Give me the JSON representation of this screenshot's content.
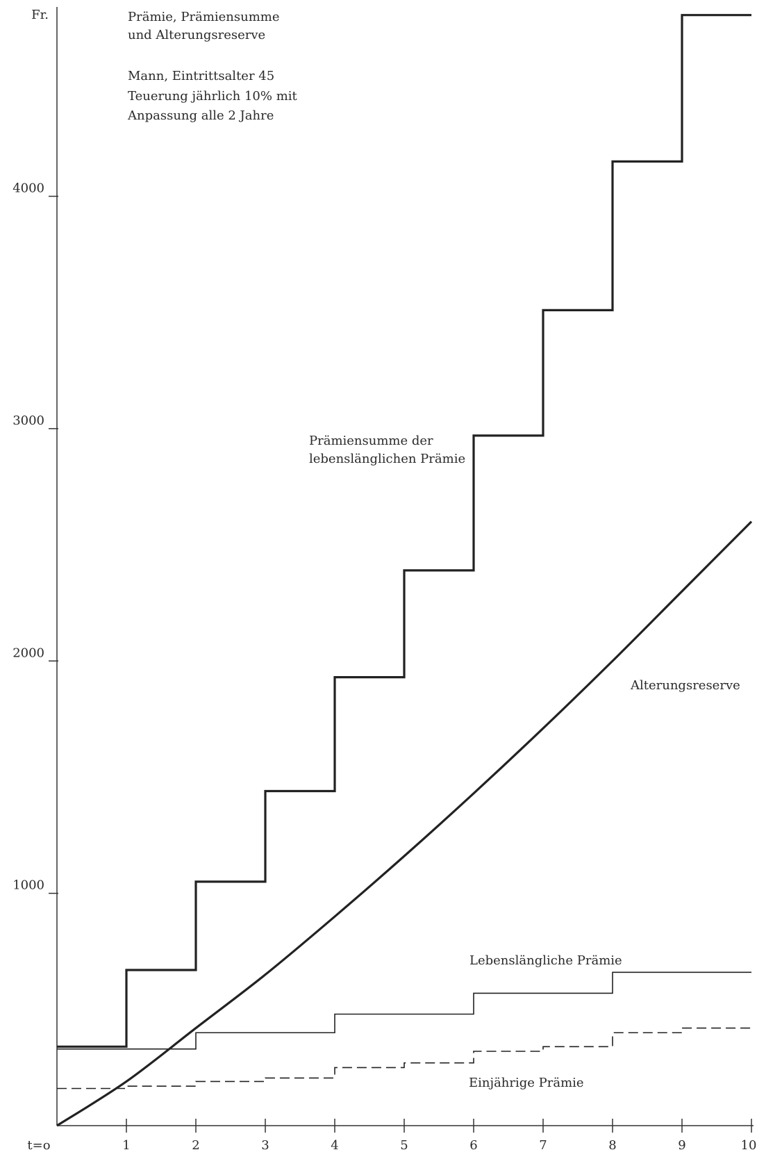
{
  "chart_data": {
    "type": "line",
    "title_lines": [
      "Prämie, Prämiensumme",
      "und Alterungsreserve"
    ],
    "subtitle_lines": [
      "Mann, Eintrittsalter 45",
      "Teuerung jährlich 10% mit",
      "Anpassung alle 2 Jahre"
    ],
    "ylabel": "Fr.",
    "xlim": [
      0,
      10
    ],
    "ylim": [
      0,
      4800
    ],
    "x_ticks": [
      {
        "value": 0,
        "label": "t=o"
      },
      {
        "value": 1,
        "label": "1"
      },
      {
        "value": 2,
        "label": "2"
      },
      {
        "value": 3,
        "label": "3"
      },
      {
        "value": 4,
        "label": "4"
      },
      {
        "value": 5,
        "label": "5"
      },
      {
        "value": 6,
        "label": "6"
      },
      {
        "value": 7,
        "label": "7"
      },
      {
        "value": 8,
        "label": "8"
      },
      {
        "value": 9,
        "label": "9"
      },
      {
        "value": 10,
        "label": "10"
      }
    ],
    "y_ticks": [
      {
        "value": 1000,
        "label": "1000"
      },
      {
        "value": 2000,
        "label": "2000"
      },
      {
        "value": 3000,
        "label": "3000"
      },
      {
        "value": 4000,
        "label": "4000"
      }
    ],
    "grid": false,
    "legend": "none",
    "series": [
      {
        "name": "Prämiensumme der lebenslänglichen Prämie",
        "label_lines": [
          "Prämiensumme der",
          "lebenslänglichen Prämie"
        ],
        "style": "step-thick",
        "x": [
          0,
          1,
          2,
          3,
          4,
          5,
          6,
          7,
          8,
          9,
          10
        ],
        "y": [
          340,
          670,
          1050,
          1440,
          1930,
          2390,
          2970,
          3510,
          4150,
          4780,
          4780
        ]
      },
      {
        "name": "Alterungsreserve",
        "label_lines": [
          "Alterungsreserve"
        ],
        "style": "curve-thick",
        "x": [
          0,
          1,
          2,
          3,
          4,
          5,
          6,
          7,
          8,
          9,
          10
        ],
        "y": [
          0,
          190,
          420,
          650,
          900,
          1160,
          1430,
          1710,
          2000,
          2300,
          2600
        ]
      },
      {
        "name": "Lebenslängliche Prämie",
        "label_lines": [
          "Lebenslängliche Prämie"
        ],
        "style": "step-thin",
        "x": [
          0,
          2,
          4,
          6,
          8,
          10
        ],
        "y": [
          330,
          400,
          480,
          570,
          660,
          660
        ]
      },
      {
        "name": "Einjährige Prämie",
        "label_lines": [
          "Einjährige Prämie"
        ],
        "style": "step-dashed",
        "x": [
          0,
          1,
          2,
          3,
          4,
          5,
          6,
          7,
          8,
          9,
          10
        ],
        "y": [
          160,
          170,
          190,
          205,
          250,
          270,
          320,
          340,
          400,
          420,
          420
        ]
      }
    ]
  }
}
